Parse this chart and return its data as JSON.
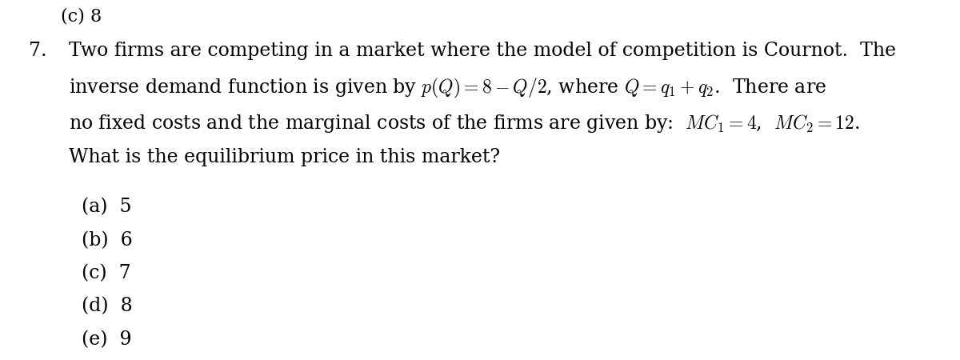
{
  "bg_color": "#ffffff",
  "text_color": "#000000",
  "question_number": "7.",
  "question_lines": [
    "Two firms are competing in a market where the model of competition is Cournot.  The",
    "inverse demand function is given by $p(Q) = 8 - Q/2$, where $Q = q_1 + q_2$.  There are",
    "no fixed costs and the marginal costs of the firms are given by:  $MC_1 = 4$,  $MC_2 = 12$.",
    "What is the equilibrium price in this market?"
  ],
  "options": [
    "(a)  5",
    "(b)  6",
    "(c)  7",
    "(d)  8",
    "(e)  9"
  ],
  "font_size_question": 17,
  "font_size_options": 17,
  "top_snippet": "(c) 8"
}
